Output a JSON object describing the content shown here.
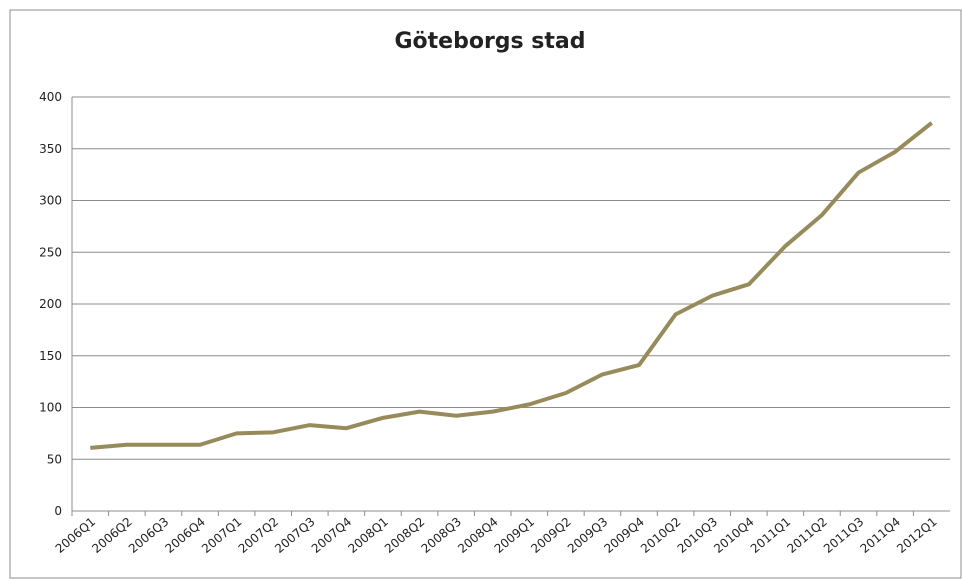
{
  "chart_data": {
    "type": "line",
    "title": "Göteborgs stad",
    "categories": [
      "2006Q1",
      "2006Q2",
      "2006Q3",
      "2006Q4",
      "2007Q1",
      "2007Q2",
      "2007Q3",
      "2007Q4",
      "2008Q1",
      "2008Q2",
      "2008Q3",
      "2008Q4",
      "2009Q1",
      "2009Q2",
      "2009Q3",
      "2009Q4",
      "2010Q2",
      "2010Q3",
      "2010Q4",
      "2011Q1",
      "2011Q2",
      "2011Q3",
      "2011Q4",
      "2012Q1"
    ],
    "values": [
      61,
      64,
      64,
      64,
      75,
      76,
      83,
      80,
      90,
      96,
      92,
      96,
      103,
      114,
      132,
      141,
      190,
      208,
      219,
      256,
      286,
      327,
      347,
      375
    ],
    "color": "#978b5c",
    "ylim": [
      0,
      400
    ],
    "yticks": [
      0,
      50,
      100,
      150,
      200,
      250,
      300,
      350,
      400
    ],
    "grid": true
  }
}
